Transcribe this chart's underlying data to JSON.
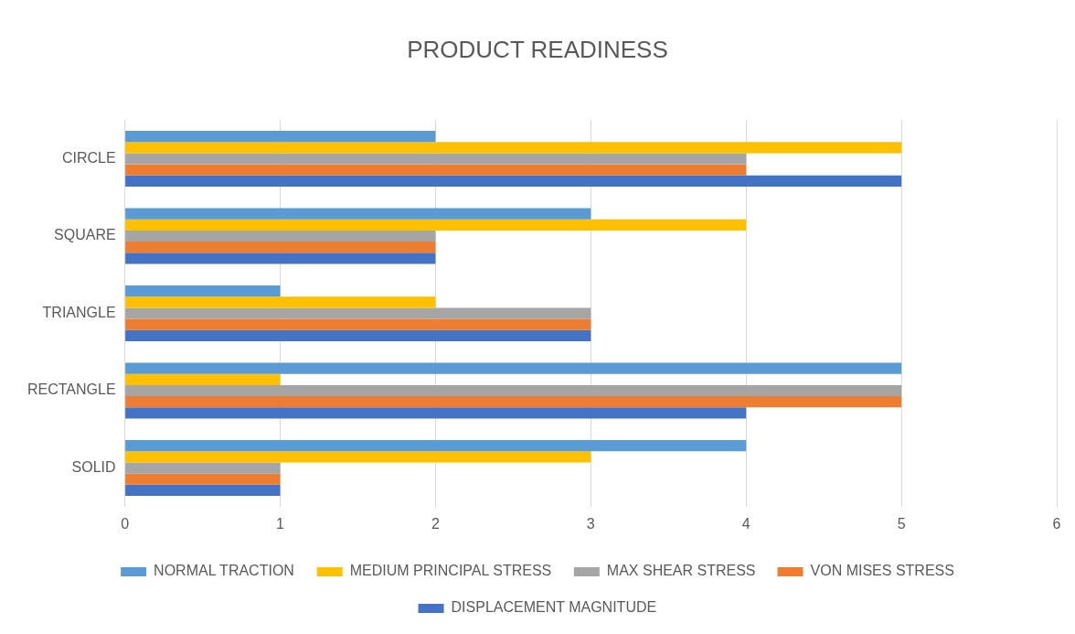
{
  "chart_data": {
    "type": "bar",
    "orientation": "horizontal",
    "title": "PRODUCT READINESS",
    "categories": [
      "CIRCLE",
      "SQUARE",
      "TRIANGLE",
      "RECTANGLE",
      "SOLID"
    ],
    "series": [
      {
        "name": "NORMAL TRACTION",
        "color": "#5b9bd5",
        "values": [
          2,
          3,
          1,
          5,
          4
        ]
      },
      {
        "name": "MEDIUM PRINCIPAL STRESS",
        "color": "#ffc000",
        "values": [
          5,
          4,
          2,
          1,
          3
        ]
      },
      {
        "name": "MAX SHEAR STRESS",
        "color": "#a5a5a5",
        "values": [
          4,
          2,
          3,
          5,
          1
        ]
      },
      {
        "name": "VON MISES STRESS",
        "color": "#ed7d31",
        "values": [
          4,
          2,
          3,
          5,
          1
        ]
      },
      {
        "name": "DISPLACEMENT MAGNITUDE",
        "color": "#4472c4",
        "values": [
          5,
          2,
          3,
          4,
          1
        ]
      }
    ],
    "xlim": [
      0,
      6
    ],
    "xticks": [
      0,
      1,
      2,
      3,
      4,
      5,
      6
    ],
    "grid": "x",
    "legend": "bottom"
  }
}
